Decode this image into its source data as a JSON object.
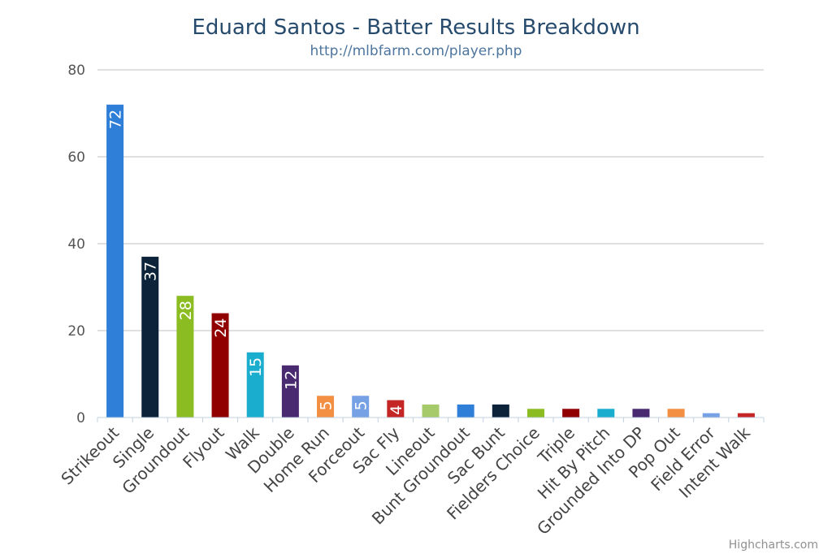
{
  "chart_data": {
    "type": "bar",
    "title": "Eduard Santos - Batter Results Breakdown",
    "subtitle": "http://mlbfarm.com/player.php",
    "categories": [
      "Strikeout",
      "Single",
      "Groundout",
      "Flyout",
      "Walk",
      "Double",
      "Home Run",
      "Forceout",
      "Sac Fly",
      "Lineout",
      "Bunt Groundout",
      "Sac Bunt",
      "Fielders Choice",
      "Triple",
      "Hit By Pitch",
      "Grounded Into DP",
      "Pop Out",
      "Field Error",
      "Intent Walk"
    ],
    "values": [
      72,
      37,
      28,
      24,
      15,
      12,
      5,
      5,
      4,
      3,
      3,
      3,
      2,
      2,
      2,
      2,
      2,
      1,
      1
    ],
    "colors": [
      "#2f7ed8",
      "#0d233a",
      "#8bbc21",
      "#910000",
      "#1aadce",
      "#492970",
      "#f28f43",
      "#77a1e5",
      "#c42525",
      "#a6c96a",
      "#2f7ed8",
      "#0d233a",
      "#8bbc21",
      "#910000",
      "#1aadce",
      "#492970",
      "#f28f43",
      "#77a1e5",
      "#c42525"
    ],
    "data_labels": [
      "72",
      "37",
      "28",
      "24",
      "15",
      "12",
      "5",
      "5",
      "4",
      "",
      "",
      "",
      "",
      "",
      "",
      "",
      "",
      "",
      ""
    ],
    "yticks": [
      "0",
      "20",
      "40",
      "60",
      "80"
    ],
    "ylim": [
      0,
      80
    ],
    "xlabel": "",
    "ylabel": "",
    "grid": true,
    "legend": false,
    "credits": "Highcharts.com"
  }
}
